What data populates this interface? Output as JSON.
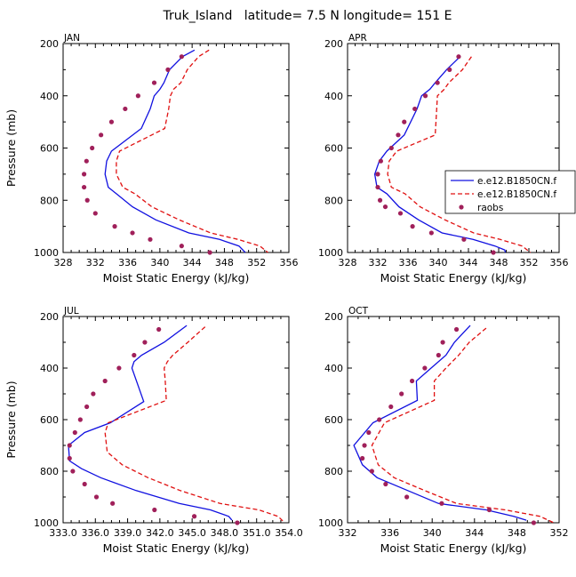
{
  "figure_title": "Truk_Island   latitude= 7.5 N longitude= 151 E",
  "colors": {
    "model1": "#1010e0",
    "model2": "#e01010",
    "raobs": "#a0205a"
  },
  "chart_data": [
    {
      "type": "line",
      "panel_label": "JAN",
      "xlabel": "Moist Static Energy (kJ/kg)",
      "ylabel": "Pressure (mb)",
      "xlim": [
        328,
        356
      ],
      "ylim": [
        1000,
        200
      ],
      "xtick_labels": [
        "328",
        "332",
        "336",
        "340",
        "344",
        "348",
        "352",
        "356"
      ],
      "ytick_labels": [
        "200",
        "400",
        "600",
        "800",
        "1000"
      ],
      "series": [
        {
          "kind": "solid",
          "x": [
            344.3,
            342.8,
            341.2,
            340.5,
            340.0,
            339.3,
            338.8,
            337.7,
            334.0,
            333.4,
            333.2,
            333.6,
            334.6,
            336.6,
            339.5,
            343.6,
            347.4,
            349.8,
            350.6
          ],
          "y": [
            225,
            250,
            300,
            350,
            375,
            400,
            450,
            525,
            612,
            650,
            700,
            750,
            775,
            825,
            875,
            925,
            950,
            975,
            1000
          ]
        },
        {
          "kind": "dashed",
          "x": [
            346.1,
            344.8,
            343.4,
            342.6,
            341.7,
            341.3,
            341.1,
            340.6,
            335.0,
            334.6,
            334.6,
            335.4,
            336.9,
            339.0,
            342.4,
            346.3,
            349.7,
            352.4,
            353.4
          ],
          "y": [
            225,
            250,
            300,
            350,
            375,
            400,
            450,
            525,
            612,
            650,
            700,
            750,
            775,
            825,
            875,
            925,
            950,
            975,
            1000
          ]
        },
        {
          "kind": "dots",
          "x": [
            342.7,
            341.0,
            339.3,
            337.3,
            335.7,
            334.0,
            332.7,
            331.6,
            330.9,
            330.6,
            330.6,
            331.0,
            332.0,
            334.4,
            336.6,
            338.8,
            342.7,
            346.2
          ],
          "y": [
            250,
            300,
            350,
            400,
            450,
            500,
            550,
            600,
            650,
            700,
            750,
            800,
            850,
            900,
            925,
            950,
            975,
            1000
          ]
        }
      ]
    },
    {
      "type": "line",
      "panel_label": "APR",
      "xlabel": "Moist Static Energy (kJ/kg)",
      "ylabel": "",
      "xlim": [
        328,
        356
      ],
      "ylim": [
        1000,
        200
      ],
      "xtick_labels": [
        "328",
        "332",
        "336",
        "340",
        "344",
        "348",
        "352",
        "356"
      ],
      "ytick_labels": [
        "200",
        "400",
        "600",
        "800",
        "1000"
      ],
      "legend": {
        "placement": "right",
        "entries": [
          {
            "label": "e.e12.B1850CN.f",
            "kind": "solid"
          },
          {
            "label": "e.e12.B1850CN.f",
            "kind": "dashed"
          },
          {
            "label": "raobs",
            "kind": "dots"
          }
        ]
      },
      "series": [
        {
          "kind": "solid",
          "x": [
            342.9,
            341.1,
            339.6,
            338.9,
            337.8,
            337.2,
            335.5,
            333.2,
            332.2,
            331.6,
            331.9,
            333.2,
            334.8,
            337.4,
            340.5,
            344.6,
            347.5,
            348.8,
            348.9
          ],
          "y": [
            250,
            300,
            350,
            375,
            400,
            450,
            550,
            612,
            650,
            700,
            750,
            775,
            825,
            875,
            925,
            950,
            975,
            990,
            1000
          ]
        },
        {
          "kind": "dashed",
          "x": [
            344.4,
            343.2,
            341.4,
            340.8,
            339.9,
            339.8,
            339.6,
            334.5,
            333.5,
            333.3,
            333.8,
            335.6,
            337.6,
            340.9,
            344.7,
            348.2,
            351.1,
            352.2
          ],
          "y": [
            250,
            300,
            350,
            375,
            400,
            450,
            550,
            612,
            650,
            700,
            750,
            775,
            825,
            875,
            925,
            950,
            975,
            1000
          ]
        },
        {
          "kind": "dots",
          "x": [
            342.7,
            341.5,
            339.9,
            338.3,
            336.9,
            335.5,
            334.7,
            333.8,
            332.4,
            332.0,
            332.0,
            332.3,
            333.0,
            335.0,
            336.6,
            339.1,
            343.4,
            347.3
          ],
          "y": [
            250,
            300,
            350,
            400,
            450,
            500,
            550,
            600,
            650,
            700,
            750,
            800,
            825,
            850,
            900,
            925,
            950,
            1000
          ]
        }
      ]
    },
    {
      "type": "line",
      "panel_label": "JUL",
      "xlabel": "Moist Static Energy (kJ/kg)",
      "ylabel": "Pressure (mb)",
      "xlim": [
        333,
        354
      ],
      "ylim": [
        1000,
        200
      ],
      "xtick_labels": [
        "333.0",
        "336.0",
        "339.0",
        "342.0",
        "345.0",
        "348.0",
        "351.0",
        "354.0"
      ],
      "ytick_labels": [
        "200",
        "400",
        "600",
        "800",
        "1000"
      ],
      "series": [
        {
          "kind": "solid",
          "x": [
            344.5,
            342.4,
            340.3,
            339.6,
            339.4,
            340.5,
            337.4,
            335.0,
            333.5,
            333.6,
            334.7,
            336.5,
            339.8,
            343.8,
            346.7,
            348.4,
            348.7
          ],
          "y": [
            235,
            300,
            350,
            375,
            400,
            530,
            612,
            650,
            700,
            760,
            790,
            825,
            875,
            925,
            950,
            975,
            990
          ]
        },
        {
          "kind": "dashed",
          "x": [
            346.2,
            344.6,
            343.2,
            342.7,
            342.4,
            342.5,
            342.6,
            337.2,
            336.9,
            337.1,
            338.5,
            340.9,
            343.9,
            347.6,
            351.2,
            353.0,
            353.6
          ],
          "y": [
            240,
            300,
            350,
            375,
            400,
            450,
            525,
            612,
            650,
            725,
            775,
            825,
            875,
            925,
            950,
            975,
            1000
          ]
        },
        {
          "kind": "dots",
          "x": [
            341.9,
            340.6,
            339.6,
            338.2,
            336.9,
            335.8,
            335.2,
            334.6,
            334.1,
            333.6,
            333.6,
            333.9,
            335.0,
            336.1,
            337.6,
            341.5,
            345.2,
            349.2
          ],
          "y": [
            250,
            300,
            350,
            400,
            450,
            500,
            550,
            600,
            650,
            700,
            750,
            800,
            850,
            900,
            925,
            950,
            975,
            1000
          ]
        }
      ]
    },
    {
      "type": "line",
      "panel_label": "OCT",
      "xlabel": "Moist Static Energy (kJ/kg)",
      "ylabel": "",
      "xlim": [
        332,
        352
      ],
      "ylim": [
        1000,
        200
      ],
      "xtick_labels": [
        "332",
        "336",
        "340",
        "344",
        "348",
        "352"
      ],
      "ytick_labels": [
        "200",
        "400",
        "600",
        "800",
        "1000"
      ],
      "series": [
        {
          "kind": "solid",
          "x": [
            343.6,
            342.1,
            341.3,
            339.9,
            338.5,
            338.6,
            334.4,
            332.6,
            333.4,
            334.8,
            337.7,
            340.6,
            345.1,
            347.7,
            348.9
          ],
          "y": [
            235,
            300,
            350,
            400,
            450,
            525,
            612,
            700,
            775,
            825,
            875,
            925,
            950,
            975,
            990
          ]
        },
        {
          "kind": "dashed",
          "x": [
            345.1,
            343.5,
            342.5,
            341.3,
            340.2,
            340.2,
            335.5,
            334.3,
            334.9,
            336.4,
            339.3,
            342.3,
            346.9,
            350.2,
            351.5
          ],
          "y": [
            245,
            300,
            350,
            400,
            450,
            525,
            612,
            700,
            775,
            825,
            875,
            925,
            950,
            975,
            1000
          ]
        },
        {
          "kind": "dots",
          "x": [
            342.3,
            341.0,
            340.6,
            339.3,
            338.1,
            337.1,
            336.1,
            335.0,
            334.0,
            333.6,
            333.4,
            334.3,
            335.6,
            337.6,
            340.9,
            345.4,
            349.6
          ],
          "y": [
            250,
            300,
            350,
            400,
            450,
            500,
            550,
            600,
            650,
            700,
            750,
            800,
            850,
            900,
            925,
            950,
            1000
          ]
        }
      ]
    }
  ]
}
